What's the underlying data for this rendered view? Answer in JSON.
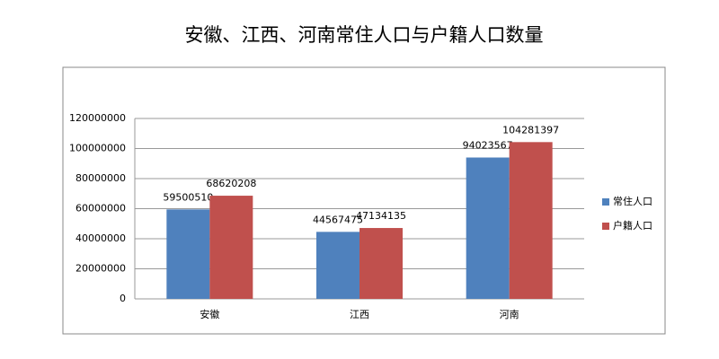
{
  "chart_data": {
    "type": "bar",
    "title": "安徽、江西、河南常住人口与户籍人口数量",
    "categories": [
      "安徽",
      "江西",
      "河南"
    ],
    "series": [
      {
        "name": "常住人口",
        "color": "#4f81bd",
        "values": [
          59500510,
          44567475,
          94023567
        ]
      },
      {
        "name": "户籍人口",
        "color": "#c0504d",
        "values": [
          68620208,
          47134135,
          104281397
        ]
      }
    ],
    "ylim": [
      0,
      120000000
    ],
    "yticks": [
      0,
      20000000,
      40000000,
      60000000,
      80000000,
      100000000,
      120000000
    ],
    "grid": true,
    "legend": "right"
  }
}
